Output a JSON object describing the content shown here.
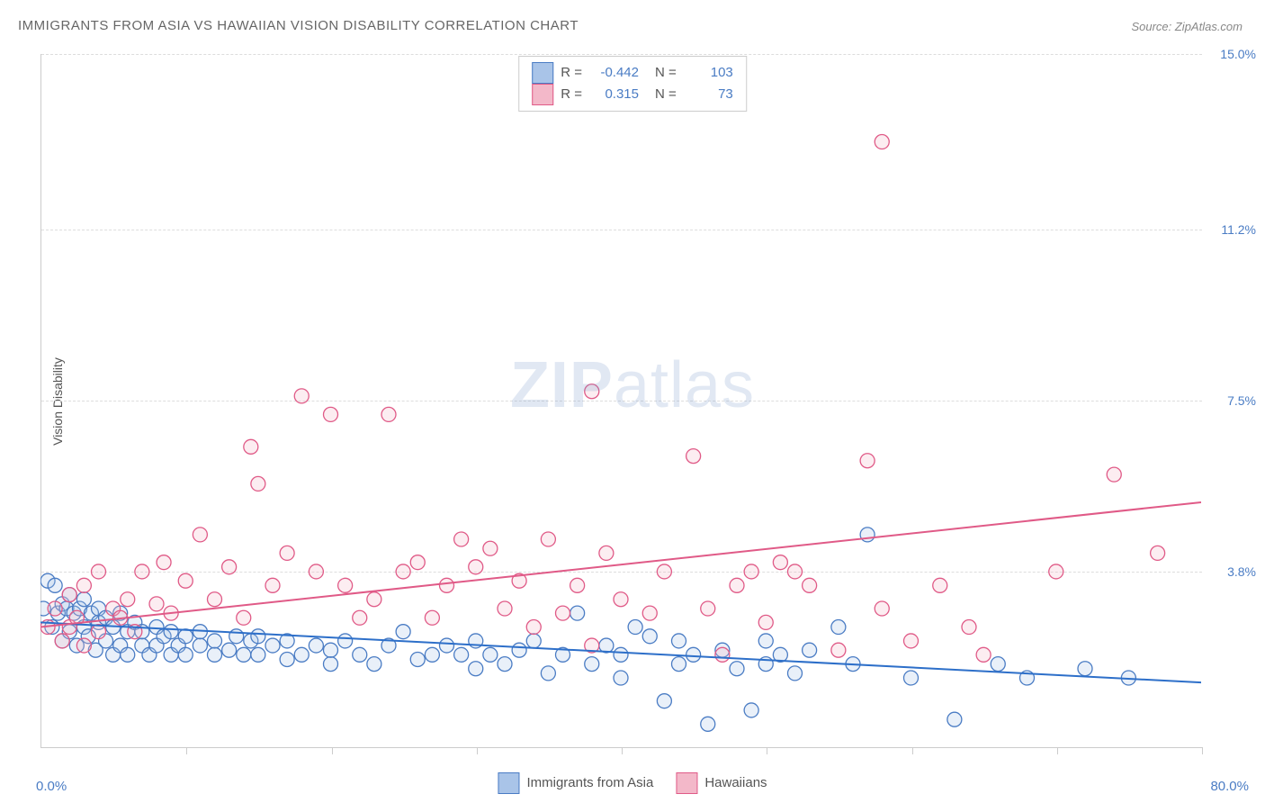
{
  "title": "IMMIGRANTS FROM ASIA VS HAWAIIAN VISION DISABILITY CORRELATION CHART",
  "source_label": "Source: ",
  "source_name": "ZipAtlas.com",
  "ylabel": "Vision Disability",
  "watermark_zip": "ZIP",
  "watermark_atlas": "atlas",
  "chart": {
    "type": "scatter",
    "background_color": "#ffffff",
    "grid_color": "#dddddd",
    "axis_color": "#cccccc",
    "tick_label_color": "#4a7cc4",
    "xlim": [
      0,
      80
    ],
    "ylim": [
      0,
      15
    ],
    "x_start_label": "0.0%",
    "x_end_label": "80.0%",
    "yticks": [
      {
        "value": 3.8,
        "label": "3.8%"
      },
      {
        "value": 7.5,
        "label": "7.5%"
      },
      {
        "value": 11.2,
        "label": "11.2%"
      },
      {
        "value": 15.0,
        "label": "15.0%"
      }
    ],
    "xtick_positions": [
      10,
      20,
      30,
      40,
      50,
      60,
      70,
      80
    ],
    "marker_radius": 8,
    "marker_stroke_width": 1.3,
    "marker_fill_opacity": 0.25,
    "series": [
      {
        "key": "asia",
        "name": "Immigrants from Asia",
        "color_fill": "#a9c4e8",
        "color_stroke": "#4a7cc4",
        "correlation_R": "-0.442",
        "correlation_N": "103",
        "trend_line": {
          "x1": 0,
          "y1": 2.7,
          "x2": 80,
          "y2": 1.4,
          "color": "#2d6fc9",
          "width": 2
        },
        "points": [
          [
            0.2,
            3.0
          ],
          [
            0.5,
            3.6
          ],
          [
            0.8,
            2.6
          ],
          [
            1.0,
            3.5
          ],
          [
            1.2,
            2.9
          ],
          [
            1.5,
            2.3
          ],
          [
            1.5,
            3.1
          ],
          [
            1.8,
            3.0
          ],
          [
            2.0,
            2.5
          ],
          [
            2.0,
            3.3
          ],
          [
            2.3,
            2.9
          ],
          [
            2.5,
            2.2
          ],
          [
            2.7,
            3.0
          ],
          [
            3.0,
            2.6
          ],
          [
            3.0,
            3.2
          ],
          [
            3.3,
            2.4
          ],
          [
            3.5,
            2.9
          ],
          [
            3.8,
            2.1
          ],
          [
            4.0,
            2.7
          ],
          [
            4.0,
            3.0
          ],
          [
            4.5,
            2.3
          ],
          [
            4.5,
            2.8
          ],
          [
            5.0,
            2.0
          ],
          [
            5.0,
            2.6
          ],
          [
            5.5,
            2.9
          ],
          [
            5.5,
            2.2
          ],
          [
            6.0,
            2.5
          ],
          [
            6.0,
            2.0
          ],
          [
            6.5,
            2.7
          ],
          [
            7.0,
            2.2
          ],
          [
            7.0,
            2.5
          ],
          [
            7.5,
            2.0
          ],
          [
            8.0,
            2.6
          ],
          [
            8.0,
            2.2
          ],
          [
            8.5,
            2.4
          ],
          [
            9.0,
            2.0
          ],
          [
            9.0,
            2.5
          ],
          [
            9.5,
            2.2
          ],
          [
            10.0,
            2.0
          ],
          [
            10.0,
            2.4
          ],
          [
            11.0,
            2.2
          ],
          [
            11.0,
            2.5
          ],
          [
            12.0,
            2.0
          ],
          [
            12.0,
            2.3
          ],
          [
            13.0,
            2.1
          ],
          [
            13.5,
            2.4
          ],
          [
            14.0,
            2.0
          ],
          [
            14.5,
            2.3
          ],
          [
            15.0,
            2.0
          ],
          [
            15.0,
            2.4
          ],
          [
            16.0,
            2.2
          ],
          [
            17.0,
            1.9
          ],
          [
            17.0,
            2.3
          ],
          [
            18.0,
            2.0
          ],
          [
            19.0,
            2.2
          ],
          [
            20.0,
            1.8
          ],
          [
            20.0,
            2.1
          ],
          [
            21.0,
            2.3
          ],
          [
            22.0,
            2.0
          ],
          [
            23.0,
            1.8
          ],
          [
            24.0,
            2.2
          ],
          [
            25.0,
            2.5
          ],
          [
            26.0,
            1.9
          ],
          [
            27.0,
            2.0
          ],
          [
            28.0,
            2.2
          ],
          [
            29.0,
            2.0
          ],
          [
            30.0,
            1.7
          ],
          [
            30.0,
            2.3
          ],
          [
            31.0,
            2.0
          ],
          [
            32.0,
            1.8
          ],
          [
            33.0,
            2.1
          ],
          [
            34.0,
            2.3
          ],
          [
            35.0,
            1.6
          ],
          [
            36.0,
            2.0
          ],
          [
            37.0,
            2.9
          ],
          [
            38.0,
            1.8
          ],
          [
            39.0,
            2.2
          ],
          [
            40.0,
            1.5
          ],
          [
            40.0,
            2.0
          ],
          [
            41.0,
            2.6
          ],
          [
            42.0,
            2.4
          ],
          [
            43.0,
            1.0
          ],
          [
            44.0,
            1.8
          ],
          [
            44.0,
            2.3
          ],
          [
            45.0,
            2.0
          ],
          [
            46.0,
            0.5
          ],
          [
            47.0,
            2.1
          ],
          [
            48.0,
            1.7
          ],
          [
            49.0,
            0.8
          ],
          [
            50.0,
            1.8
          ],
          [
            50.0,
            2.3
          ],
          [
            51.0,
            2.0
          ],
          [
            52.0,
            1.6
          ],
          [
            53.0,
            2.1
          ],
          [
            55.0,
            2.6
          ],
          [
            56.0,
            1.8
          ],
          [
            57.0,
            4.6
          ],
          [
            60.0,
            1.5
          ],
          [
            63.0,
            0.6
          ],
          [
            66.0,
            1.8
          ],
          [
            68.0,
            1.5
          ],
          [
            72.0,
            1.7
          ],
          [
            75.0,
            1.5
          ]
        ]
      },
      {
        "key": "hawaiian",
        "name": "Hawaiians",
        "color_fill": "#f3b8c9",
        "color_stroke": "#e05a87",
        "correlation_R": "0.315",
        "correlation_N": "73",
        "trend_line": {
          "x1": 0,
          "y1": 2.6,
          "x2": 80,
          "y2": 5.3,
          "color": "#e05a87",
          "width": 2
        },
        "points": [
          [
            0.5,
            2.6
          ],
          [
            1.0,
            3.0
          ],
          [
            1.5,
            2.3
          ],
          [
            2.0,
            3.3
          ],
          [
            2.0,
            2.6
          ],
          [
            2.5,
            2.8
          ],
          [
            3.0,
            3.5
          ],
          [
            3.0,
            2.2
          ],
          [
            4.0,
            3.8
          ],
          [
            4.0,
            2.5
          ],
          [
            5.0,
            3.0
          ],
          [
            5.5,
            2.8
          ],
          [
            6.0,
            3.2
          ],
          [
            6.5,
            2.5
          ],
          [
            7.0,
            3.8
          ],
          [
            8.0,
            3.1
          ],
          [
            8.5,
            4.0
          ],
          [
            9.0,
            2.9
          ],
          [
            10.0,
            3.6
          ],
          [
            11.0,
            4.6
          ],
          [
            12.0,
            3.2
          ],
          [
            13.0,
            3.9
          ],
          [
            14.0,
            2.8
          ],
          [
            14.5,
            6.5
          ],
          [
            15.0,
            5.7
          ],
          [
            16.0,
            3.5
          ],
          [
            17.0,
            4.2
          ],
          [
            18.0,
            7.6
          ],
          [
            19.0,
            3.8
          ],
          [
            20.0,
            7.2
          ],
          [
            21.0,
            3.5
          ],
          [
            22.0,
            2.8
          ],
          [
            23.0,
            3.2
          ],
          [
            24.0,
            7.2
          ],
          [
            25.0,
            3.8
          ],
          [
            26.0,
            4.0
          ],
          [
            27.0,
            2.8
          ],
          [
            28.0,
            3.5
          ],
          [
            29.0,
            4.5
          ],
          [
            30.0,
            3.9
          ],
          [
            31.0,
            4.3
          ],
          [
            32.0,
            3.0
          ],
          [
            33.0,
            3.6
          ],
          [
            34.0,
            2.6
          ],
          [
            35.0,
            4.5
          ],
          [
            36.0,
            2.9
          ],
          [
            37.0,
            3.5
          ],
          [
            38.0,
            2.2
          ],
          [
            38.0,
            7.7
          ],
          [
            39.0,
            4.2
          ],
          [
            40.0,
            3.2
          ],
          [
            42.0,
            2.9
          ],
          [
            43.0,
            3.8
          ],
          [
            45.0,
            6.3
          ],
          [
            46.0,
            3.0
          ],
          [
            47.0,
            2.0
          ],
          [
            48.0,
            3.5
          ],
          [
            49.0,
            3.8
          ],
          [
            50.0,
            2.7
          ],
          [
            51.0,
            4.0
          ],
          [
            52.0,
            3.8
          ],
          [
            53.0,
            3.5
          ],
          [
            55.0,
            2.1
          ],
          [
            57.0,
            6.2
          ],
          [
            58.0,
            3.0
          ],
          [
            58.0,
            13.1
          ],
          [
            60.0,
            2.3
          ],
          [
            62.0,
            3.5
          ],
          [
            64.0,
            2.6
          ],
          [
            65.0,
            2.0
          ],
          [
            70.0,
            3.8
          ],
          [
            74.0,
            5.9
          ],
          [
            77.0,
            4.2
          ]
        ]
      }
    ]
  },
  "legend_bottom": [
    {
      "label": "Immigrants from Asia",
      "fill": "#a9c4e8",
      "stroke": "#4a7cc4"
    },
    {
      "label": "Hawaiians",
      "fill": "#f3b8c9",
      "stroke": "#e05a87"
    }
  ],
  "stats_labels": {
    "R": "R =",
    "N": "N ="
  }
}
